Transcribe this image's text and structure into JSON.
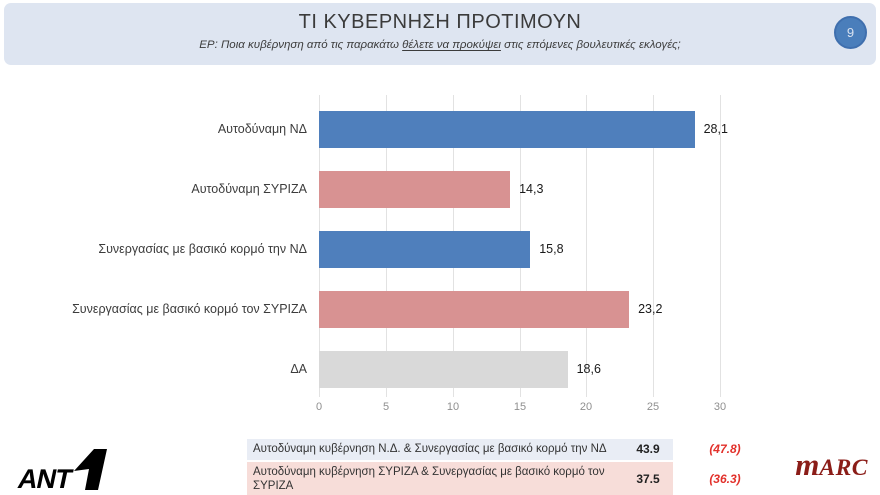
{
  "header": {
    "title": "ΤΙ ΚΥΒΕΡΝΗΣΗ ΠΡΟΤΙΜΟΥΝ",
    "subtitle_prefix": "ΕΡ: Ποια κυβέρνηση από τις παρακάτω ",
    "subtitle_underlined": "θέλετε να προκύψει",
    "subtitle_suffix": " στις επόμενες βουλευτικές εκλογές;",
    "page_number": "9",
    "background_color": "#dee5f1"
  },
  "chart_data": {
    "type": "bar",
    "orientation": "horizontal",
    "title": "",
    "categories": [
      "Αυτοδύναμη ΝΔ",
      "Αυτοδύναμη ΣΥΡΙΖΑ",
      "Συνεργασίας με βασικό κορμό την ΝΔ",
      "Συνεργασίας με βασικό κορμό τον ΣΥΡΙΖΑ",
      "ΔΑ"
    ],
    "values": [
      28.1,
      14.3,
      15.8,
      23.2,
      18.6
    ],
    "value_labels": [
      "28,1",
      "14,3",
      "15,8",
      "23,2",
      "18,6"
    ],
    "bar_colors": [
      "#4f7fbc",
      "#d89292",
      "#4f7fbc",
      "#d89292",
      "#d9d9d9"
    ],
    "xlim": [
      0,
      30
    ],
    "xticks": [
      "0",
      "5",
      "10",
      "15",
      "20",
      "25",
      "30"
    ],
    "grid": true,
    "legend": "none"
  },
  "summary_table": {
    "rows": [
      {
        "label": "Αυτοδύναμη κυβέρνηση Ν.Δ. & Συνεργασίας με βασικό κορμό την ΝΔ",
        "value": "43.9",
        "paren_value": "(47.8)",
        "row_color": "#e9edf5"
      },
      {
        "label": "Αυτοδύναμη κυβέρνηση ΣΥΡΙΖΑ & Συνεργασίας με βασικό κορμό τον ΣΥΡΙΖΑ",
        "value": "37.5",
        "paren_value": "(36.3)",
        "row_color": "#f7ddd9"
      }
    ],
    "paren_color": "#e2312b"
  },
  "logos": {
    "ant1_text": "ANT",
    "marc_first": "m",
    "marc_rest": "ARC",
    "marc_color": "#8b1d18"
  }
}
